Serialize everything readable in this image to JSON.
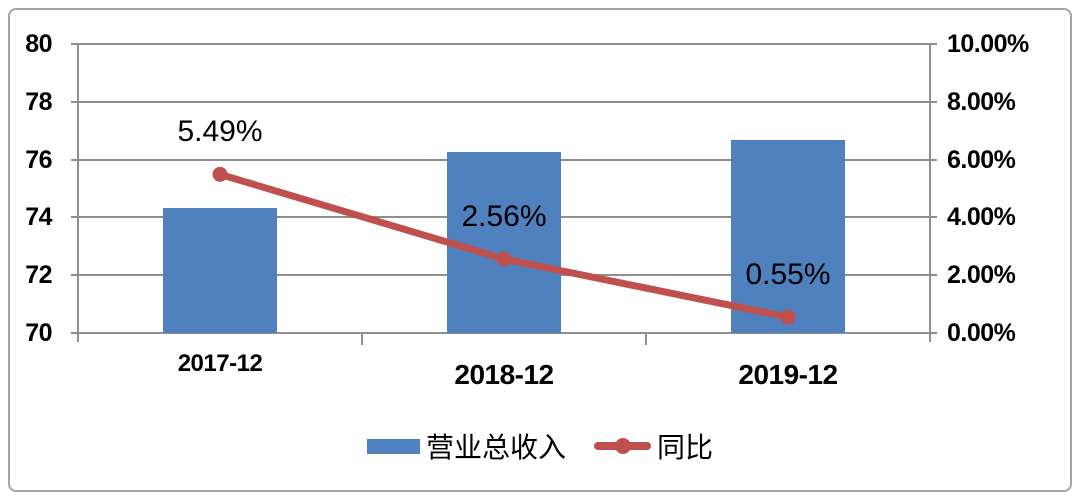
{
  "chart_data": {
    "type": "combo-bar-line",
    "categories": [
      "2017-12",
      "2018-12",
      "2019-12"
    ],
    "series": [
      {
        "name": "营业总收入",
        "type": "bar",
        "axis": "left",
        "values": [
          74.34,
          76.25,
          76.67
        ],
        "color": "#4E81BD"
      },
      {
        "name": "同比",
        "type": "line",
        "axis": "right",
        "values": [
          5.49,
          2.56,
          0.55
        ],
        "labels": [
          "5.49%",
          "2.56%",
          "0.55%"
        ],
        "color": "#C0504D"
      }
    ],
    "left_axis": {
      "min": 70,
      "max": 80,
      "step": 2,
      "ticks": [
        "80",
        "78",
        "76",
        "74",
        "72",
        "70"
      ]
    },
    "right_axis": {
      "min": 0,
      "max": 10,
      "step": 2,
      "ticks": [
        "10.00%",
        "8.00%",
        "6.00%",
        "4.00%",
        "2.00%",
        "0.00%"
      ]
    },
    "grid": true,
    "legend_position": "bottom"
  },
  "colors": {
    "bar": "#4E81BD",
    "line": "#C0504D",
    "grid": "#8E8E8E",
    "axis": "#8E8E8E",
    "frame": "#A6A6A6",
    "text": "#000000",
    "background": "#FFFFFF"
  },
  "legend": {
    "items": [
      {
        "label": "营业总收入",
        "marker": "bar-swatch"
      },
      {
        "label": "同比",
        "marker": "line-dot"
      }
    ]
  }
}
